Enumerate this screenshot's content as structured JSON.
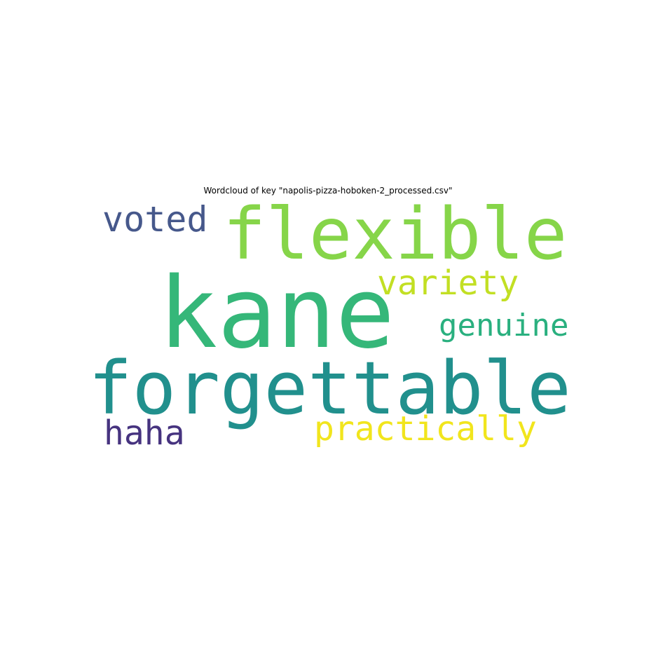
{
  "title": "Wordcloud of key \"napolis-pizza-hoboken-2_processed.csv\"",
  "words": [
    {
      "text": "kane",
      "color": "#35b779"
    },
    {
      "text": "flexible",
      "color": "#86d549"
    },
    {
      "text": "forgettable",
      "color": "#21908d"
    },
    {
      "text": "voted",
      "color": "#46588b"
    },
    {
      "text": "variety",
      "color": "#c2df23"
    },
    {
      "text": "genuine",
      "color": "#2ab07f"
    },
    {
      "text": "practically",
      "color": "#f1e51d"
    },
    {
      "text": "haha",
      "color": "#46337f"
    }
  ]
}
